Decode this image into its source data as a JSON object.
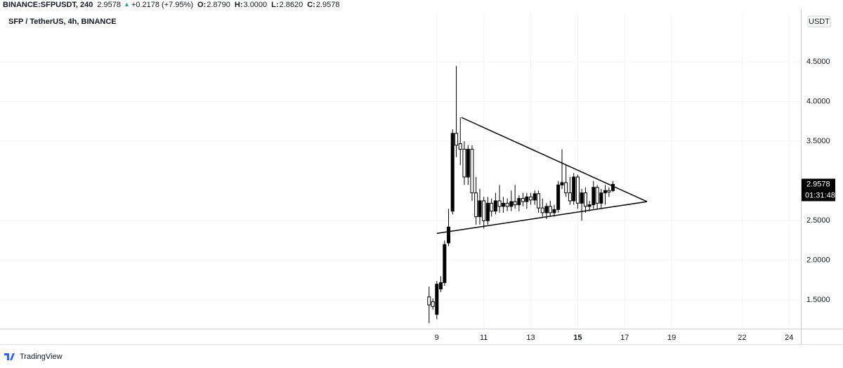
{
  "chart_data": {
    "type": "candlestick",
    "header": {
      "symbol": "BINANCE:SFPUSDT, 240",
      "price": "2.9578",
      "arrow": "▲",
      "change": "+0.2178 (+7.95%)",
      "ohlc": [
        {
          "key": "O:",
          "value": "2.8790"
        },
        {
          "key": "H:",
          "value": "3.0000"
        },
        {
          "key": "L:",
          "value": "2.8620"
        },
        {
          "key": "C:",
          "value": "2.9578"
        }
      ]
    },
    "title": "SFP / TetherUS, 4h, BINANCE",
    "currency": "USDT",
    "branding": "TradingView",
    "up_color": "#000000",
    "down_color": "#ffffff",
    "x": [
      8.67,
      8.83,
      9.0,
      9.17,
      9.33,
      9.5,
      9.67,
      9.83,
      10.0,
      10.17,
      10.33,
      10.5,
      10.67,
      10.83,
      11.0,
      11.17,
      11.33,
      11.5,
      11.67,
      11.83,
      12.0,
      12.17,
      12.33,
      12.5,
      12.67,
      12.83,
      13.0,
      13.17,
      13.33,
      13.5,
      13.67,
      13.83,
      14.0,
      14.17,
      14.33,
      14.5,
      14.67,
      14.83,
      15.0,
      15.17,
      15.33,
      15.5,
      15.67,
      15.83,
      16.0,
      16.17,
      16.33,
      16.5
    ],
    "open": [
      1.54,
      1.48,
      1.32,
      1.64,
      1.72,
      2.22,
      2.62,
      3.6,
      3.47,
      3.4,
      3.05,
      3.4,
      2.85,
      2.55,
      2.75,
      2.5,
      2.72,
      2.62,
      2.75,
      2.68,
      2.72,
      2.68,
      2.74,
      2.7,
      2.78,
      2.74,
      2.8,
      2.76,
      2.84,
      2.66,
      2.6,
      2.68,
      2.6,
      2.64,
      2.95,
      2.98,
      2.85,
      2.75,
      3.05,
      2.72,
      2.85,
      2.68,
      2.7,
      2.92,
      2.72,
      2.85,
      2.88,
      2.879
    ],
    "high": [
      1.67,
      1.52,
      1.74,
      1.8,
      2.25,
      2.65,
      3.65,
      4.45,
      3.8,
      3.5,
      3.45,
      3.45,
      3.05,
      2.9,
      2.8,
      2.8,
      2.78,
      2.85,
      2.95,
      2.8,
      2.78,
      2.88,
      2.95,
      2.82,
      2.85,
      2.85,
      2.85,
      2.88,
      2.88,
      2.78,
      2.72,
      2.75,
      2.7,
      3.0,
      3.4,
      3.2,
      3.05,
      3.1,
      3.08,
      2.9,
      2.92,
      2.75,
      3.0,
      2.95,
      2.9,
      2.95,
      2.92,
      3.0
    ],
    "low": [
      1.21,
      1.38,
      1.26,
      1.6,
      1.68,
      2.18,
      2.58,
      3.3,
      3.2,
      2.95,
      2.95,
      2.75,
      2.45,
      2.45,
      2.4,
      2.45,
      2.55,
      2.58,
      2.6,
      2.6,
      2.62,
      2.62,
      2.65,
      2.62,
      2.68,
      2.65,
      2.7,
      2.7,
      2.6,
      2.55,
      2.52,
      2.55,
      2.55,
      2.6,
      2.9,
      2.8,
      2.7,
      2.7,
      2.65,
      2.5,
      2.6,
      2.62,
      2.65,
      2.65,
      2.66,
      2.7,
      2.8,
      2.862
    ],
    "close": [
      1.44,
      1.42,
      1.7,
      1.72,
      2.2,
      2.42,
      3.6,
      3.45,
      3.4,
      3.05,
      3.4,
      2.85,
      2.55,
      2.75,
      2.5,
      2.72,
      2.62,
      2.75,
      2.68,
      2.72,
      2.68,
      2.74,
      2.7,
      2.78,
      2.74,
      2.8,
      2.76,
      2.84,
      2.66,
      2.6,
      2.68,
      2.6,
      2.64,
      2.95,
      2.98,
      2.85,
      2.75,
      3.05,
      2.72,
      2.85,
      2.68,
      2.7,
      2.92,
      2.72,
      2.85,
      2.88,
      2.86,
      2.9578
    ],
    "trendlines": [
      {
        "x": [
          10.05,
          17.95
        ],
        "y": [
          3.8,
          2.74
        ]
      },
      {
        "x": [
          9.0,
          17.95
        ],
        "y": [
          2.34,
          2.74
        ]
      }
    ],
    "last_price": 2.9578,
    "countdown": "01:31:48",
    "xlim": [
      -9.6,
      24.5
    ],
    "xticks": [
      9,
      11,
      13,
      15,
      17,
      19,
      22,
      24
    ],
    "bold_xtick": 15,
    "ylim": [
      1.14,
      5.12
    ],
    "yticks": [
      {
        "value": 1.5,
        "label": "1.5000"
      },
      {
        "value": 2.0,
        "label": "2.0000"
      },
      {
        "value": 2.5,
        "label": "2.5000"
      },
      {
        "value": 3.5,
        "label": "3.5000"
      },
      {
        "value": 4.0,
        "label": "4.0000"
      },
      {
        "value": 4.5,
        "label": "4.5000"
      }
    ],
    "grid": true
  }
}
